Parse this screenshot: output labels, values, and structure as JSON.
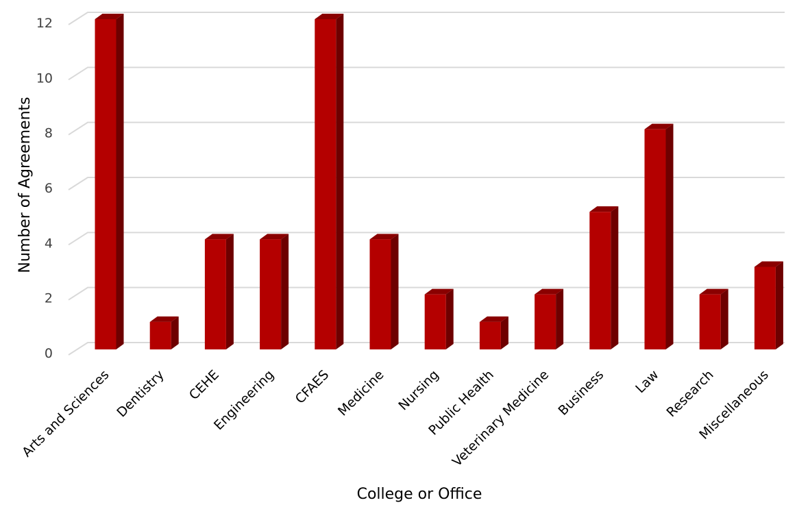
{
  "chart_data": {
    "type": "bar",
    "title": "",
    "xlabel": "College or Office",
    "ylabel": "Number of Agreements",
    "categories": [
      "Arts and Sciences",
      "Dentistry",
      "CEHE",
      "Engineering",
      "CFAES",
      "Medicine",
      "Nursing",
      "Public Health",
      "Veterinary Medicine",
      "Business",
      "Law",
      "Research",
      "Miscellaneous"
    ],
    "values": [
      12,
      1,
      4,
      4,
      12,
      4,
      2,
      1,
      2,
      5,
      8,
      2,
      3
    ],
    "ylim": [
      0,
      12
    ],
    "yticks": [
      0,
      2,
      4,
      6,
      8,
      10,
      12
    ],
    "grid": true,
    "legend": "none",
    "style": "3d-column",
    "colors": {
      "bar_front": "#b40000",
      "bar_side": "#6e0000",
      "bar_top": "#8a0000",
      "grid": "#d9d9d9"
    }
  }
}
